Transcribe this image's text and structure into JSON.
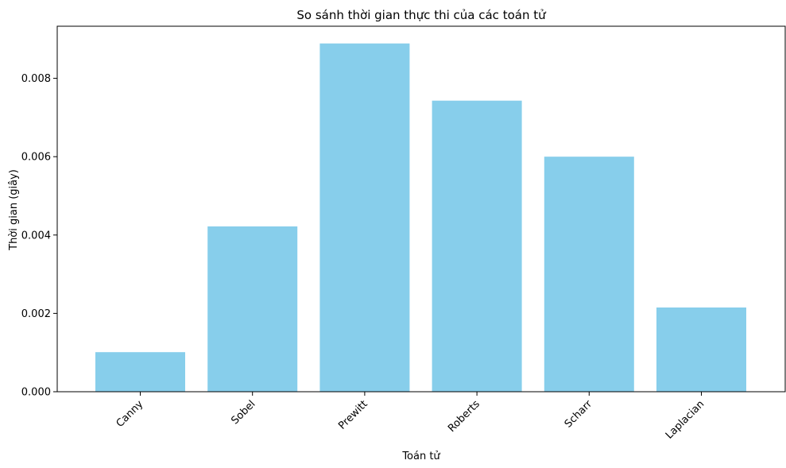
{
  "chart_data": {
    "type": "bar",
    "title": "So sánh thời gian thực thi của các toán tử",
    "xlabel": "Toán tử",
    "ylabel": "Thời gian (giây)",
    "categories": [
      "Canny",
      "Sobel",
      "Prewitt",
      "Roberts",
      "Scharr",
      "Laplacian"
    ],
    "values": [
      0.00101,
      0.00422,
      0.00889,
      0.00743,
      0.006,
      0.00215
    ],
    "ylim": [
      0,
      0.00933
    ],
    "yticks": [
      0.0,
      0.002,
      0.004,
      0.006,
      0.008
    ],
    "ytick_labels": [
      "0.000",
      "0.002",
      "0.004",
      "0.006",
      "0.008"
    ],
    "xtick_rotation": 45,
    "bar_color": "#87ceeb",
    "grid": false,
    "legend": "none"
  }
}
